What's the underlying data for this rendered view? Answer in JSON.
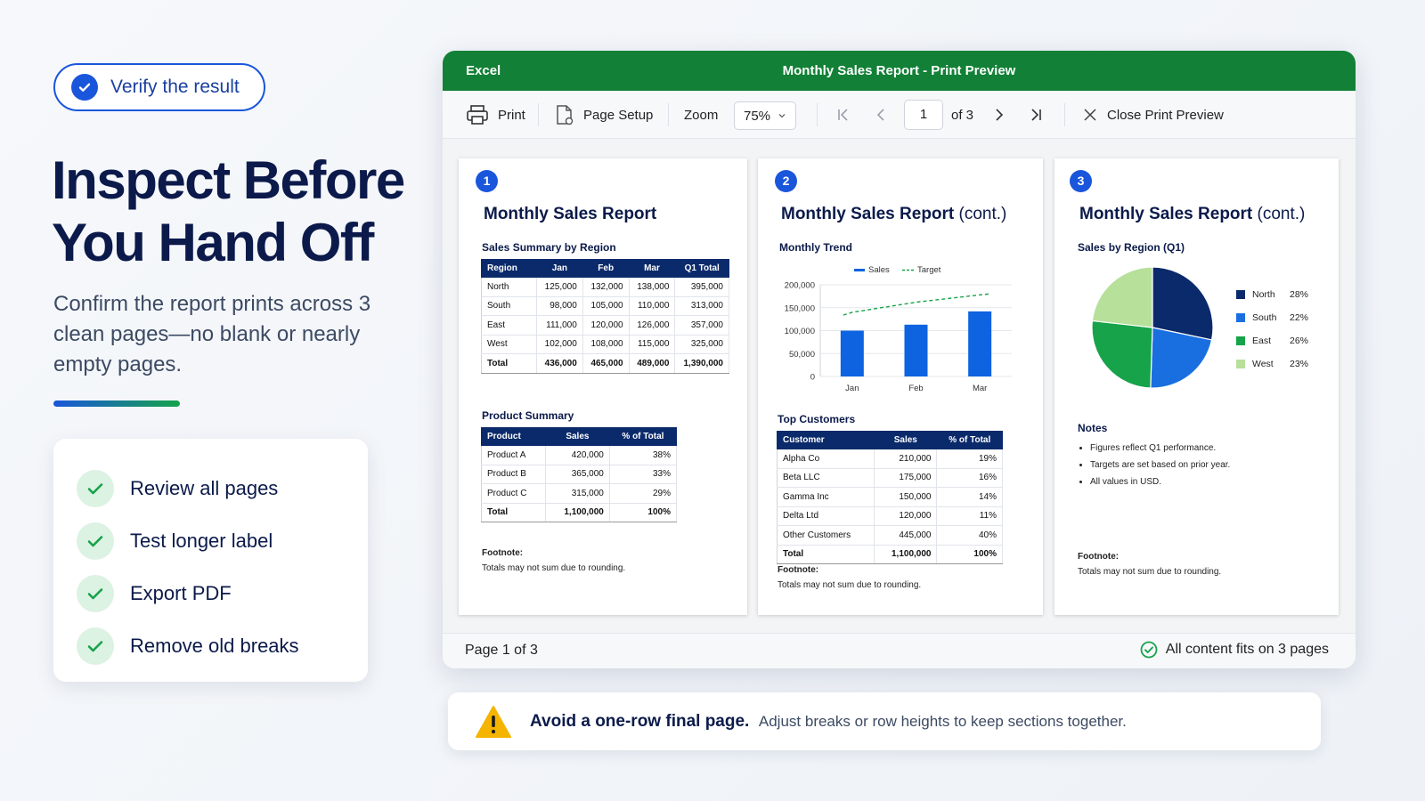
{
  "left": {
    "pill_label": "Verify the result",
    "headline_line1": "Inspect Before",
    "headline_line2": "You Hand Off",
    "subtext": "Confirm the report prints across 3 clean pages—no blank or nearly empty pages.",
    "checklist": [
      "Review all pages",
      "Test longer label",
      "Export PDF",
      "Remove old breaks"
    ]
  },
  "window": {
    "app": "Excel",
    "title": "Monthly Sales Report - Print Preview",
    "toolbar": {
      "print": "Print",
      "page_setup": "Page Setup",
      "zoom_label": "Zoom",
      "zoom_value": "75%",
      "page_input": "1",
      "page_of": "of 3",
      "close": "Close Print Preview"
    },
    "status_left_prefix": "Page ",
    "status_left_page": "1",
    "status_left_suffix": " of 3",
    "status_right": "All content fits on 3 pages"
  },
  "pages": [
    {
      "num": "1",
      "title": "Monthly Sales Report",
      "sec1": "Sales Summary by Region",
      "region_headers": [
        "Region",
        "Jan",
        "Feb",
        "Mar",
        "Q1 Total"
      ],
      "region_rows": [
        [
          "North",
          "125,000",
          "132,000",
          "138,000",
          "395,000"
        ],
        [
          "South",
          "98,000",
          "105,000",
          "110,000",
          "313,000"
        ],
        [
          "East",
          "111,000",
          "120,000",
          "126,000",
          "357,000"
        ],
        [
          "West",
          "102,000",
          "108,000",
          "115,000",
          "325,000"
        ],
        [
          "Total",
          "436,000",
          "465,000",
          "489,000",
          "1,390,000"
        ]
      ],
      "sec2": "Product Summary",
      "product_headers": [
        "Product",
        "Sales",
        "% of Total"
      ],
      "product_rows": [
        [
          "Product A",
          "420,000",
          "38%"
        ],
        [
          "Product B",
          "365,000",
          "33%"
        ],
        [
          "Product C",
          "315,000",
          "29%"
        ],
        [
          "Total",
          "1,100,000",
          "100%"
        ]
      ],
      "footnote_label": "Footnote:",
      "footnote": "Totals may not sum due to rounding."
    },
    {
      "num": "2",
      "title": "Monthly Sales Report",
      "title_cont": " (cont.)",
      "sec1": "Monthly Trend",
      "sec2": "Top Customers",
      "cust_headers": [
        "Customer",
        "Sales",
        "% of Total"
      ],
      "cust_rows": [
        [
          "Alpha Co",
          "210,000",
          "19%"
        ],
        [
          "Beta LLC",
          "175,000",
          "16%"
        ],
        [
          "Gamma Inc",
          "150,000",
          "14%"
        ],
        [
          "Delta Ltd",
          "120,000",
          "11%"
        ],
        [
          "Other Customers",
          "445,000",
          "40%"
        ],
        [
          "Total",
          "1,100,000",
          "100%"
        ]
      ],
      "footnote_label": "Footnote:",
      "footnote": "Totals may not sum due to rounding."
    },
    {
      "num": "3",
      "title": "Monthly Sales Report",
      "title_cont": " (cont.)",
      "sec1": "Sales by Region (Q1)",
      "notes_label": "Notes",
      "notes": [
        "Figures reflect Q1 performance.",
        "Targets are set based on prior year.",
        "All values in USD."
      ],
      "footnote_label": "Footnote:",
      "footnote": "Totals may not sum due to rounding."
    }
  ],
  "chart_data": [
    {
      "type": "bar",
      "categories": [
        "Jan",
        "Feb",
        "Mar"
      ],
      "series": [
        {
          "name": "Sales",
          "type": "bar",
          "values": [
            100000,
            113000,
            142000
          ],
          "color": "#0d63e0"
        },
        {
          "name": "Target",
          "type": "line",
          "values": [
            140000,
            162000,
            178000
          ],
          "color": "#16a34a"
        }
      ],
      "ylim": [
        0,
        200000
      ],
      "yticks": [
        "0",
        "50,000",
        "100,000",
        "150,000",
        "200,000"
      ],
      "ytick_values": [
        0,
        50000,
        100000,
        150000,
        200000
      ],
      "legend": "top",
      "grid": true
    },
    {
      "type": "pie",
      "labels": [
        "North",
        "South",
        "East",
        "West"
      ],
      "values": [
        28,
        22,
        26,
        23
      ],
      "value_labels": [
        "28%",
        "22%",
        "26%",
        "23%"
      ],
      "colors": [
        "#0b2a6b",
        "#1a6fe0",
        "#16a34a",
        "#b7e09a"
      ]
    }
  ],
  "warning": {
    "bold": "Avoid a one-row final page.",
    "rest": "Adjust breaks or row heights to keep sections together."
  },
  "colors": {
    "excel_green": "#128036",
    "accent_blue": "#1a56db",
    "success_green": "#16a34a",
    "warning_yellow": "#f5b400"
  }
}
